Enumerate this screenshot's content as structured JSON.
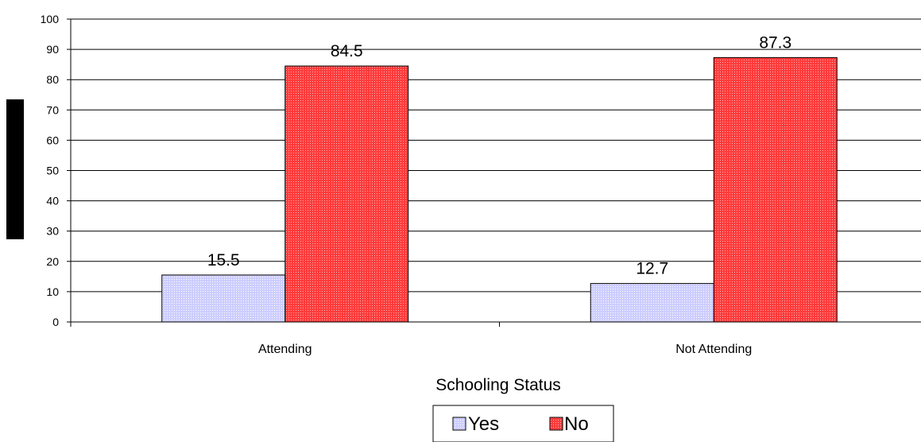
{
  "chart_data": {
    "type": "bar",
    "title": "",
    "xlabel": "Schooling Status",
    "ylabel": "",
    "ylim": [
      0,
      100
    ],
    "yticks": [
      0,
      10,
      20,
      30,
      40,
      50,
      60,
      70,
      80,
      90,
      100
    ],
    "categories": [
      "Attending",
      "Not Attending"
    ],
    "series": [
      {
        "name": "Yes",
        "values": [
          15.5,
          12.7
        ],
        "color": "#ccccff"
      },
      {
        "name": "No",
        "values": [
          84.5,
          87.3
        ],
        "color": "#ff3f3f"
      }
    ],
    "data_labels": true,
    "grid": true,
    "legend_position": "bottom"
  }
}
